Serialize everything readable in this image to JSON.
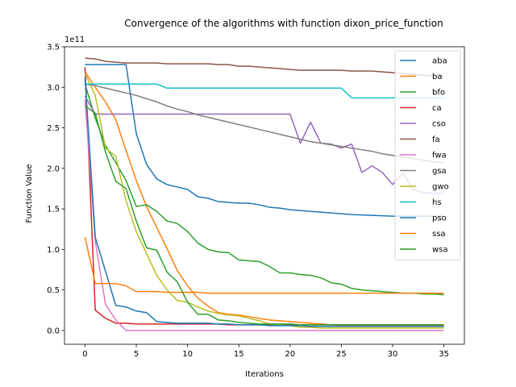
{
  "chart_data": {
    "type": "line",
    "title": "Convergence of the algorithms with function dixon_price_function",
    "xlabel": "Iterations",
    "ylabel": "Function Value",
    "y_multiplier_label": "1e11",
    "xlim": [
      -2,
      37
    ],
    "ylim": [
      -0.17,
      3.5
    ],
    "x_ticks": [
      0,
      5,
      10,
      15,
      20,
      25,
      30,
      35
    ],
    "y_ticks": [
      0.0,
      0.5,
      1.0,
      1.5,
      2.0,
      2.5,
      3.0,
      3.5
    ],
    "y_tick_labels": [
      "0.0",
      "0.5",
      "1.0",
      "1.5",
      "2.0",
      "2.5",
      "3.0",
      "3.5"
    ],
    "grid": false,
    "legend_position": "top-right",
    "x": [
      0,
      1,
      2,
      3,
      4,
      5,
      6,
      7,
      8,
      9,
      10,
      11,
      12,
      13,
      14,
      15,
      16,
      17,
      18,
      19,
      20,
      21,
      22,
      23,
      24,
      25,
      26,
      27,
      28,
      29,
      30,
      31,
      32,
      33,
      34,
      35
    ],
    "series": [
      {
        "name": "aba",
        "color": "#1f77b4",
        "values": [
          3.28,
          3.28,
          3.28,
          3.28,
          3.28,
          2.43,
          2.05,
          1.87,
          1.8,
          1.77,
          1.74,
          1.65,
          1.63,
          1.59,
          1.58,
          1.57,
          1.57,
          1.55,
          1.52,
          1.51,
          1.49,
          1.48,
          1.47,
          1.46,
          1.45,
          1.44,
          1.43,
          1.425,
          1.42,
          1.415,
          1.41,
          1.41,
          1.41,
          1.41,
          1.41,
          1.41
        ]
      },
      {
        "name": "ba",
        "color": "#ff7f0e",
        "values": [
          3.19,
          3.0,
          2.82,
          2.6,
          2.22,
          1.85,
          1.53,
          1.27,
          1.01,
          0.74,
          0.55,
          0.4,
          0.3,
          0.22,
          0.2,
          0.19,
          0.17,
          0.15,
          0.13,
          0.12,
          0.11,
          0.1,
          0.09,
          0.08,
          0.07,
          0.06,
          0.06,
          0.06,
          0.06,
          0.06,
          0.06,
          0.06,
          0.06,
          0.06,
          0.06,
          0.06
        ]
      },
      {
        "name": "bfo",
        "color": "#2ca02c",
        "values": [
          3.04,
          2.62,
          2.28,
          2.07,
          1.85,
          1.53,
          1.55,
          1.47,
          1.35,
          1.32,
          1.22,
          1.08,
          1.0,
          0.97,
          0.96,
          0.87,
          0.86,
          0.85,
          0.79,
          0.71,
          0.71,
          0.69,
          0.68,
          0.65,
          0.59,
          0.57,
          0.52,
          0.5,
          0.49,
          0.48,
          0.47,
          0.46,
          0.46,
          0.45,
          0.45,
          0.44
        ]
      },
      {
        "name": "ca",
        "color": "#d62728",
        "values": [
          3.25,
          0.25,
          0.15,
          0.09,
          0.09,
          0.08,
          0.08,
          0.08,
          0.08,
          0.08,
          0.08,
          0.08,
          0.08,
          0.08,
          0.07,
          0.07,
          0.07,
          0.07,
          0.07,
          0.07,
          0.07,
          0.07,
          0.07,
          0.07,
          0.07,
          0.07,
          0.07,
          0.07,
          0.07,
          0.07,
          0.07,
          0.07,
          0.07,
          0.07,
          0.07,
          0.07
        ]
      },
      {
        "name": "cso",
        "color": "#9467bd",
        "values": [
          2.89,
          2.67,
          2.67,
          2.67,
          2.67,
          2.67,
          2.67,
          2.67,
          2.67,
          2.67,
          2.67,
          2.67,
          2.67,
          2.67,
          2.67,
          2.67,
          2.67,
          2.67,
          2.67,
          2.67,
          2.67,
          2.31,
          2.57,
          2.31,
          2.3,
          2.25,
          2.3,
          1.95,
          2.03,
          1.95,
          1.8,
          1.94,
          1.74,
          1.7,
          1.69,
          1.69
        ]
      },
      {
        "name": "fa",
        "color": "#8c564b",
        "values": [
          3.36,
          3.35,
          3.32,
          3.31,
          3.3,
          3.3,
          3.3,
          3.3,
          3.29,
          3.29,
          3.29,
          3.29,
          3.29,
          3.28,
          3.28,
          3.26,
          3.26,
          3.25,
          3.24,
          3.23,
          3.22,
          3.21,
          3.21,
          3.21,
          3.21,
          3.21,
          3.2,
          3.2,
          3.2,
          3.19,
          3.18,
          3.17,
          3.16,
          3.15,
          3.14,
          3.14
        ]
      },
      {
        "name": "fwa",
        "color": "#e377c2",
        "values": [
          2.85,
          1.1,
          0.32,
          0.13,
          0.0,
          0.0,
          0.0,
          0.0,
          0.0,
          0.0,
          0.0,
          0.0,
          0.0,
          0.0,
          0.0,
          0.0,
          0.0,
          0.0,
          0.0,
          0.0,
          0.0,
          0.0,
          0.0,
          0.0,
          0.0,
          0.0,
          0.0,
          0.0,
          0.0,
          0.0,
          0.0,
          0.0,
          0.0,
          0.0,
          0.0,
          0.0
        ]
      },
      {
        "name": "gsa",
        "color": "#7f7f7f",
        "values": [
          3.04,
          3.02,
          2.99,
          2.96,
          2.93,
          2.9,
          2.86,
          2.82,
          2.77,
          2.73,
          2.7,
          2.66,
          2.63,
          2.6,
          2.57,
          2.54,
          2.51,
          2.48,
          2.45,
          2.42,
          2.39,
          2.36,
          2.33,
          2.31,
          2.29,
          2.27,
          2.25,
          2.23,
          2.21,
          2.18,
          2.16,
          2.14,
          2.12,
          2.1,
          2.08,
          2.07
        ]
      },
      {
        "name": "gwo",
        "color": "#bcbd22",
        "values": [
          3.17,
          2.9,
          2.25,
          2.15,
          1.6,
          1.22,
          0.95,
          0.68,
          0.5,
          0.37,
          0.35,
          0.29,
          0.24,
          0.21,
          0.19,
          0.18,
          0.15,
          0.12,
          0.08,
          0.07,
          0.06,
          0.04,
          0.04,
          0.03,
          0.03,
          0.03,
          0.03,
          0.03,
          0.03,
          0.03,
          0.03,
          0.03,
          0.03,
          0.03,
          0.03,
          0.03
        ]
      },
      {
        "name": "hs",
        "color": "#17becf",
        "values": [
          3.04,
          3.04,
          3.04,
          3.04,
          3.04,
          3.04,
          3.04,
          3.04,
          2.99,
          2.99,
          2.99,
          2.99,
          2.99,
          2.99,
          2.99,
          2.99,
          2.99,
          2.99,
          2.99,
          2.99,
          2.99,
          2.99,
          2.99,
          2.99,
          2.99,
          2.99,
          2.87,
          2.87,
          2.87,
          2.87,
          2.87,
          2.87,
          2.87,
          2.87,
          2.87,
          2.87
        ]
      },
      {
        "name": "pso",
        "color": "#1f77b4",
        "values": [
          3.12,
          1.15,
          0.73,
          0.31,
          0.29,
          0.24,
          0.22,
          0.11,
          0.1,
          0.09,
          0.09,
          0.09,
          0.09,
          0.08,
          0.08,
          0.07,
          0.07,
          0.07,
          0.06,
          0.06,
          0.06,
          0.06,
          0.05,
          0.05,
          0.05,
          0.05,
          0.05,
          0.05,
          0.05,
          0.05,
          0.05,
          0.05,
          0.05,
          0.05,
          0.05,
          0.05
        ]
      },
      {
        "name": "ssa",
        "color": "#ff7f0e",
        "values": [
          1.15,
          0.58,
          0.58,
          0.58,
          0.55,
          0.48,
          0.48,
          0.48,
          0.47,
          0.47,
          0.47,
          0.47,
          0.46,
          0.46,
          0.46,
          0.46,
          0.46,
          0.46,
          0.46,
          0.46,
          0.46,
          0.46,
          0.46,
          0.46,
          0.46,
          0.46,
          0.46,
          0.46,
          0.46,
          0.46,
          0.46,
          0.46,
          0.46,
          0.46,
          0.46,
          0.46
        ]
      },
      {
        "name": "wsa",
        "color": "#2ca02c",
        "values": [
          2.77,
          2.68,
          2.2,
          1.84,
          1.75,
          1.35,
          1.02,
          0.99,
          0.72,
          0.6,
          0.35,
          0.2,
          0.2,
          0.13,
          0.12,
          0.1,
          0.09,
          0.08,
          0.08,
          0.08,
          0.08,
          0.07,
          0.07,
          0.07,
          0.07,
          0.07,
          0.07,
          0.07,
          0.07,
          0.07,
          0.07,
          0.07,
          0.07,
          0.07,
          0.07,
          0.07
        ]
      }
    ]
  }
}
